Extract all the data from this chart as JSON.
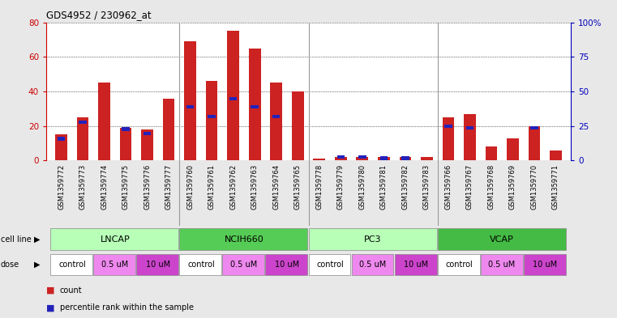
{
  "title": "GDS4952 / 230962_at",
  "samples": [
    "GSM1359772",
    "GSM1359773",
    "GSM1359774",
    "GSM1359775",
    "GSM1359776",
    "GSM1359777",
    "GSM1359760",
    "GSM1359761",
    "GSM1359762",
    "GSM1359763",
    "GSM1359764",
    "GSM1359765",
    "GSM1359778",
    "GSM1359779",
    "GSM1359780",
    "GSM1359781",
    "GSM1359782",
    "GSM1359783",
    "GSM1359766",
    "GSM1359767",
    "GSM1359768",
    "GSM1359769",
    "GSM1359770",
    "GSM1359771"
  ],
  "red_values": [
    15,
    25,
    45,
    19,
    18,
    36,
    69,
    46,
    75,
    65,
    45,
    40,
    1,
    2,
    2,
    2,
    2,
    2,
    25,
    27,
    8,
    13,
    20,
    6
  ],
  "blue_values_pct": [
    17,
    29,
    0,
    24,
    21,
    0,
    40,
    33,
    46,
    40,
    33,
    0,
    0,
    4,
    4,
    3,
    3,
    0,
    26,
    25,
    0,
    0,
    25,
    0
  ],
  "cell_lines": [
    "LNCAP",
    "NCIH660",
    "PC3",
    "VCAP"
  ],
  "cell_line_colors": [
    "#b8ffb8",
    "#55cc55",
    "#b8ffb8",
    "#44bb44"
  ],
  "dose_labels": [
    "control",
    "0.5 uM",
    "10 uM"
  ],
  "dose_colors": [
    "#ffffff",
    "#ee88ee",
    "#cc44cc"
  ],
  "ylim_left": [
    0,
    80
  ],
  "ylim_right": [
    0,
    100
  ],
  "yticks_left": [
    0,
    20,
    40,
    60,
    80
  ],
  "yticks_right": [
    0,
    25,
    50,
    75,
    100
  ],
  "yticklabels_right": [
    "0",
    "25",
    "50",
    "75",
    "100%"
  ],
  "bar_color_red": "#cc2222",
  "bar_color_blue": "#2222bb",
  "bar_width": 0.55,
  "bg_color": "#e8e8e8",
  "plot_bg": "#ffffff",
  "left_ylabel_color": "#cc0000",
  "right_ylabel_color": "#0000bb",
  "separator_color": "#999999"
}
